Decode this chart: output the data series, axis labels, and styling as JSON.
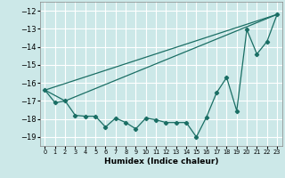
{
  "xlabel": "Humidex (Indice chaleur)",
  "ylabel": "",
  "xlim": [
    -0.5,
    23.5
  ],
  "ylim": [
    -19.5,
    -11.5
  ],
  "yticks": [
    -19,
    -18,
    -17,
    -16,
    -15,
    -14,
    -13,
    -12
  ],
  "xticks": [
    0,
    1,
    2,
    3,
    4,
    5,
    6,
    7,
    8,
    9,
    10,
    11,
    12,
    13,
    14,
    15,
    16,
    17,
    18,
    19,
    20,
    21,
    22,
    23
  ],
  "bg_color": "#cce8e8",
  "grid_color": "#ffffff",
  "line_color": "#1a6e64",
  "line1_x": [
    0,
    23
  ],
  "line1_y": [
    -16.4,
    -12.2
  ],
  "line2_x": [
    0,
    2,
    23
  ],
  "line2_y": [
    -16.4,
    -17.0,
    -12.2
  ],
  "data_x": [
    0,
    1,
    2,
    3,
    4,
    5,
    6,
    7,
    8,
    9,
    10,
    11,
    12,
    13,
    14,
    15,
    16,
    17,
    18,
    19,
    20,
    21,
    22,
    23
  ],
  "data_y": [
    -16.4,
    -17.1,
    -17.0,
    -17.8,
    -17.85,
    -17.85,
    -18.45,
    -17.95,
    -18.2,
    -18.55,
    -17.95,
    -18.05,
    -18.2,
    -18.2,
    -18.2,
    -19.0,
    -17.9,
    -16.55,
    -15.7,
    -17.55,
    -13.05,
    -14.4,
    -13.7,
    -12.2
  ]
}
